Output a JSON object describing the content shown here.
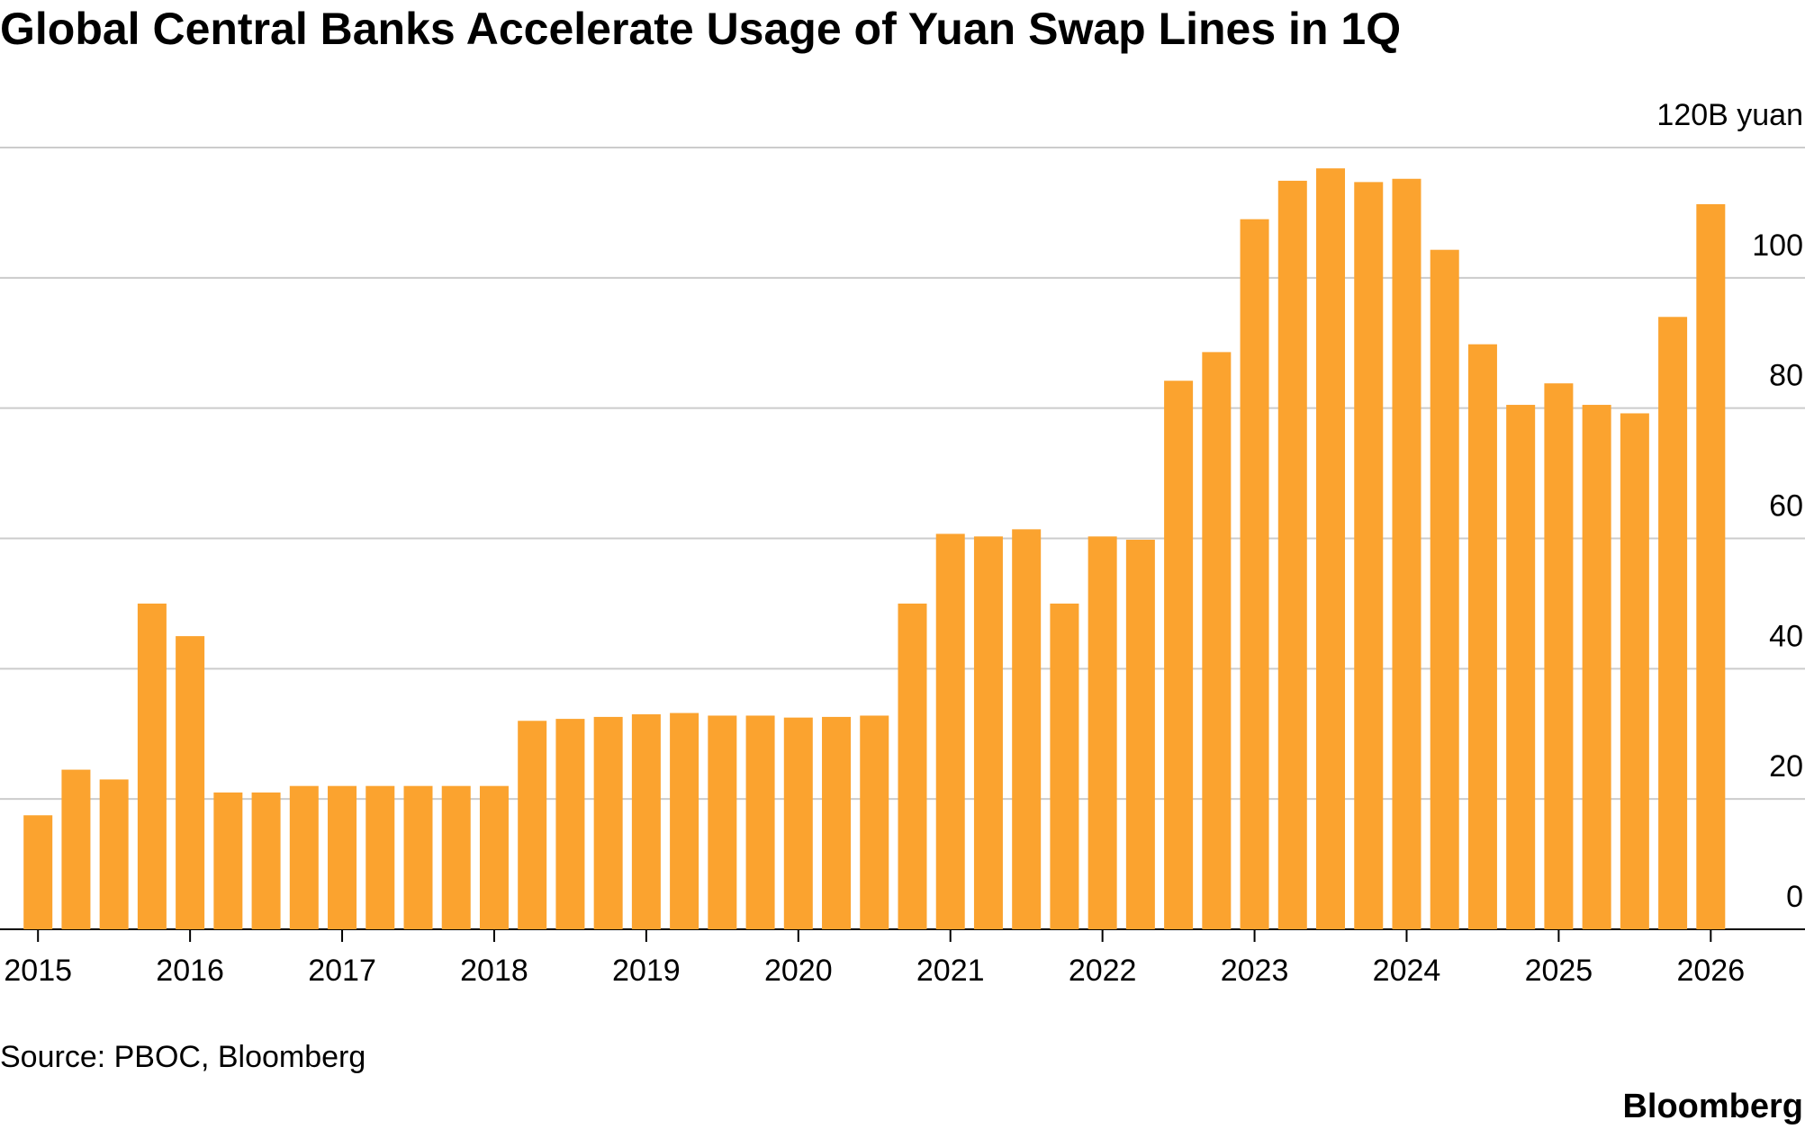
{
  "chart_data": {
    "type": "bar",
    "title": "Global Central Banks Accelerate Usage of Yuan Swap Lines in 1Q",
    "source": "Source: PBOC, Bloomberg",
    "brand": "Bloomberg",
    "color": "#fba32f",
    "categories": [
      "2015",
      null,
      null,
      null,
      "2016",
      null,
      null,
      null,
      "2017",
      null,
      null,
      null,
      "2018",
      null,
      null,
      null,
      "2019",
      null,
      null,
      null,
      "2020",
      null,
      null,
      null,
      "2021",
      null,
      null,
      null,
      "2022",
      null,
      null,
      null,
      "2023",
      null,
      null,
      null,
      "2024",
      null,
      null,
      null,
      "2025",
      null,
      null,
      null,
      "2026"
    ],
    "values": [
      17.5,
      24.5,
      23,
      50,
      45,
      21,
      21,
      22,
      22,
      22,
      22,
      22,
      22,
      32,
      32.3,
      32.6,
      33,
      33.2,
      32.8,
      32.8,
      32.5,
      32.6,
      32.8,
      50,
      60.7,
      60.3,
      61.4,
      50,
      60.3,
      59.8,
      84.2,
      88.6,
      109,
      114.9,
      116.8,
      114.7,
      115.2,
      104.3,
      89.8,
      80.5,
      83.8,
      80.5,
      79.2,
      94,
      111.3
    ],
    "ylim": [
      0,
      120
    ],
    "yticks": [
      0,
      20,
      40,
      60,
      80,
      100,
      {
        "value": 120,
        "label": "120B yuan"
      }
    ],
    "grid": true
  }
}
